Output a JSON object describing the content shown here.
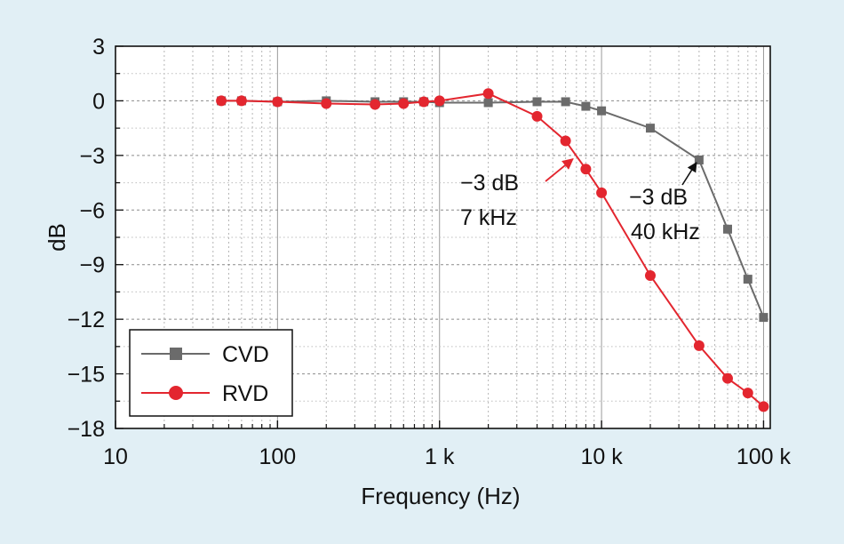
{
  "chart_data": {
    "type": "line",
    "title": "",
    "xlabel": "Frequency (Hz)",
    "ylabel": "dB",
    "xscale": "log",
    "xlim": [
      10,
      110000
    ],
    "ylim": [
      -18,
      3
    ],
    "xticks": [
      {
        "value": 10,
        "label": "10"
      },
      {
        "value": 100,
        "label": "100"
      },
      {
        "value": 1000,
        "label": "1 k"
      },
      {
        "value": 10000,
        "label": "10 k"
      },
      {
        "value": 100000,
        "label": "100 k"
      }
    ],
    "yticks": [
      {
        "value": 3,
        "label": "3"
      },
      {
        "value": 0,
        "label": "0"
      },
      {
        "value": -3,
        "label": "−3"
      },
      {
        "value": -6,
        "label": "−6"
      },
      {
        "value": -9,
        "label": "−9"
      },
      {
        "value": -12,
        "label": "−12"
      },
      {
        "value": -15,
        "label": "−15"
      },
      {
        "value": -18,
        "label": "−18"
      }
    ],
    "grid": true,
    "legend_position": "bottom-left",
    "series": [
      {
        "name": "CVD",
        "color": "#6b6b6b",
        "marker": "square",
        "x": [
          45,
          60,
          100,
          200,
          400,
          600,
          800,
          1000,
          2000,
          4000,
          6000,
          8000,
          10000,
          20000,
          40000,
          60000,
          80000,
          100000
        ],
        "y": [
          0,
          0,
          -0.05,
          0,
          -0.05,
          -0.05,
          -0.05,
          -0.1,
          -0.1,
          -0.05,
          -0.05,
          -0.3,
          -0.55,
          -1.5,
          -3.25,
          -7.05,
          -9.8,
          -11.9
        ]
      },
      {
        "name": "RVD",
        "color": "#e3262f",
        "marker": "circle",
        "x": [
          45,
          60,
          100,
          200,
          400,
          600,
          800,
          1000,
          2000,
          4000,
          6000,
          8000,
          10000,
          20000,
          40000,
          60000,
          80000,
          100000
        ],
        "y": [
          0,
          0,
          -0.05,
          -0.15,
          -0.2,
          -0.15,
          -0.05,
          0,
          0.4,
          -0.85,
          -2.2,
          -3.75,
          -5.05,
          -9.6,
          -13.45,
          -15.25,
          -16.05,
          -16.8
        ]
      }
    ],
    "annotations": [
      {
        "lines": [
          "−3 dB",
          "7 kHz"
        ],
        "target": {
          "x": 7000,
          "y": -3
        },
        "color": "#e3262f"
      },
      {
        "lines": [
          "−3 dB",
          "40 kHz"
        ],
        "target": {
          "x": 40000,
          "y": -3.25
        },
        "color": "#111111"
      }
    ]
  }
}
